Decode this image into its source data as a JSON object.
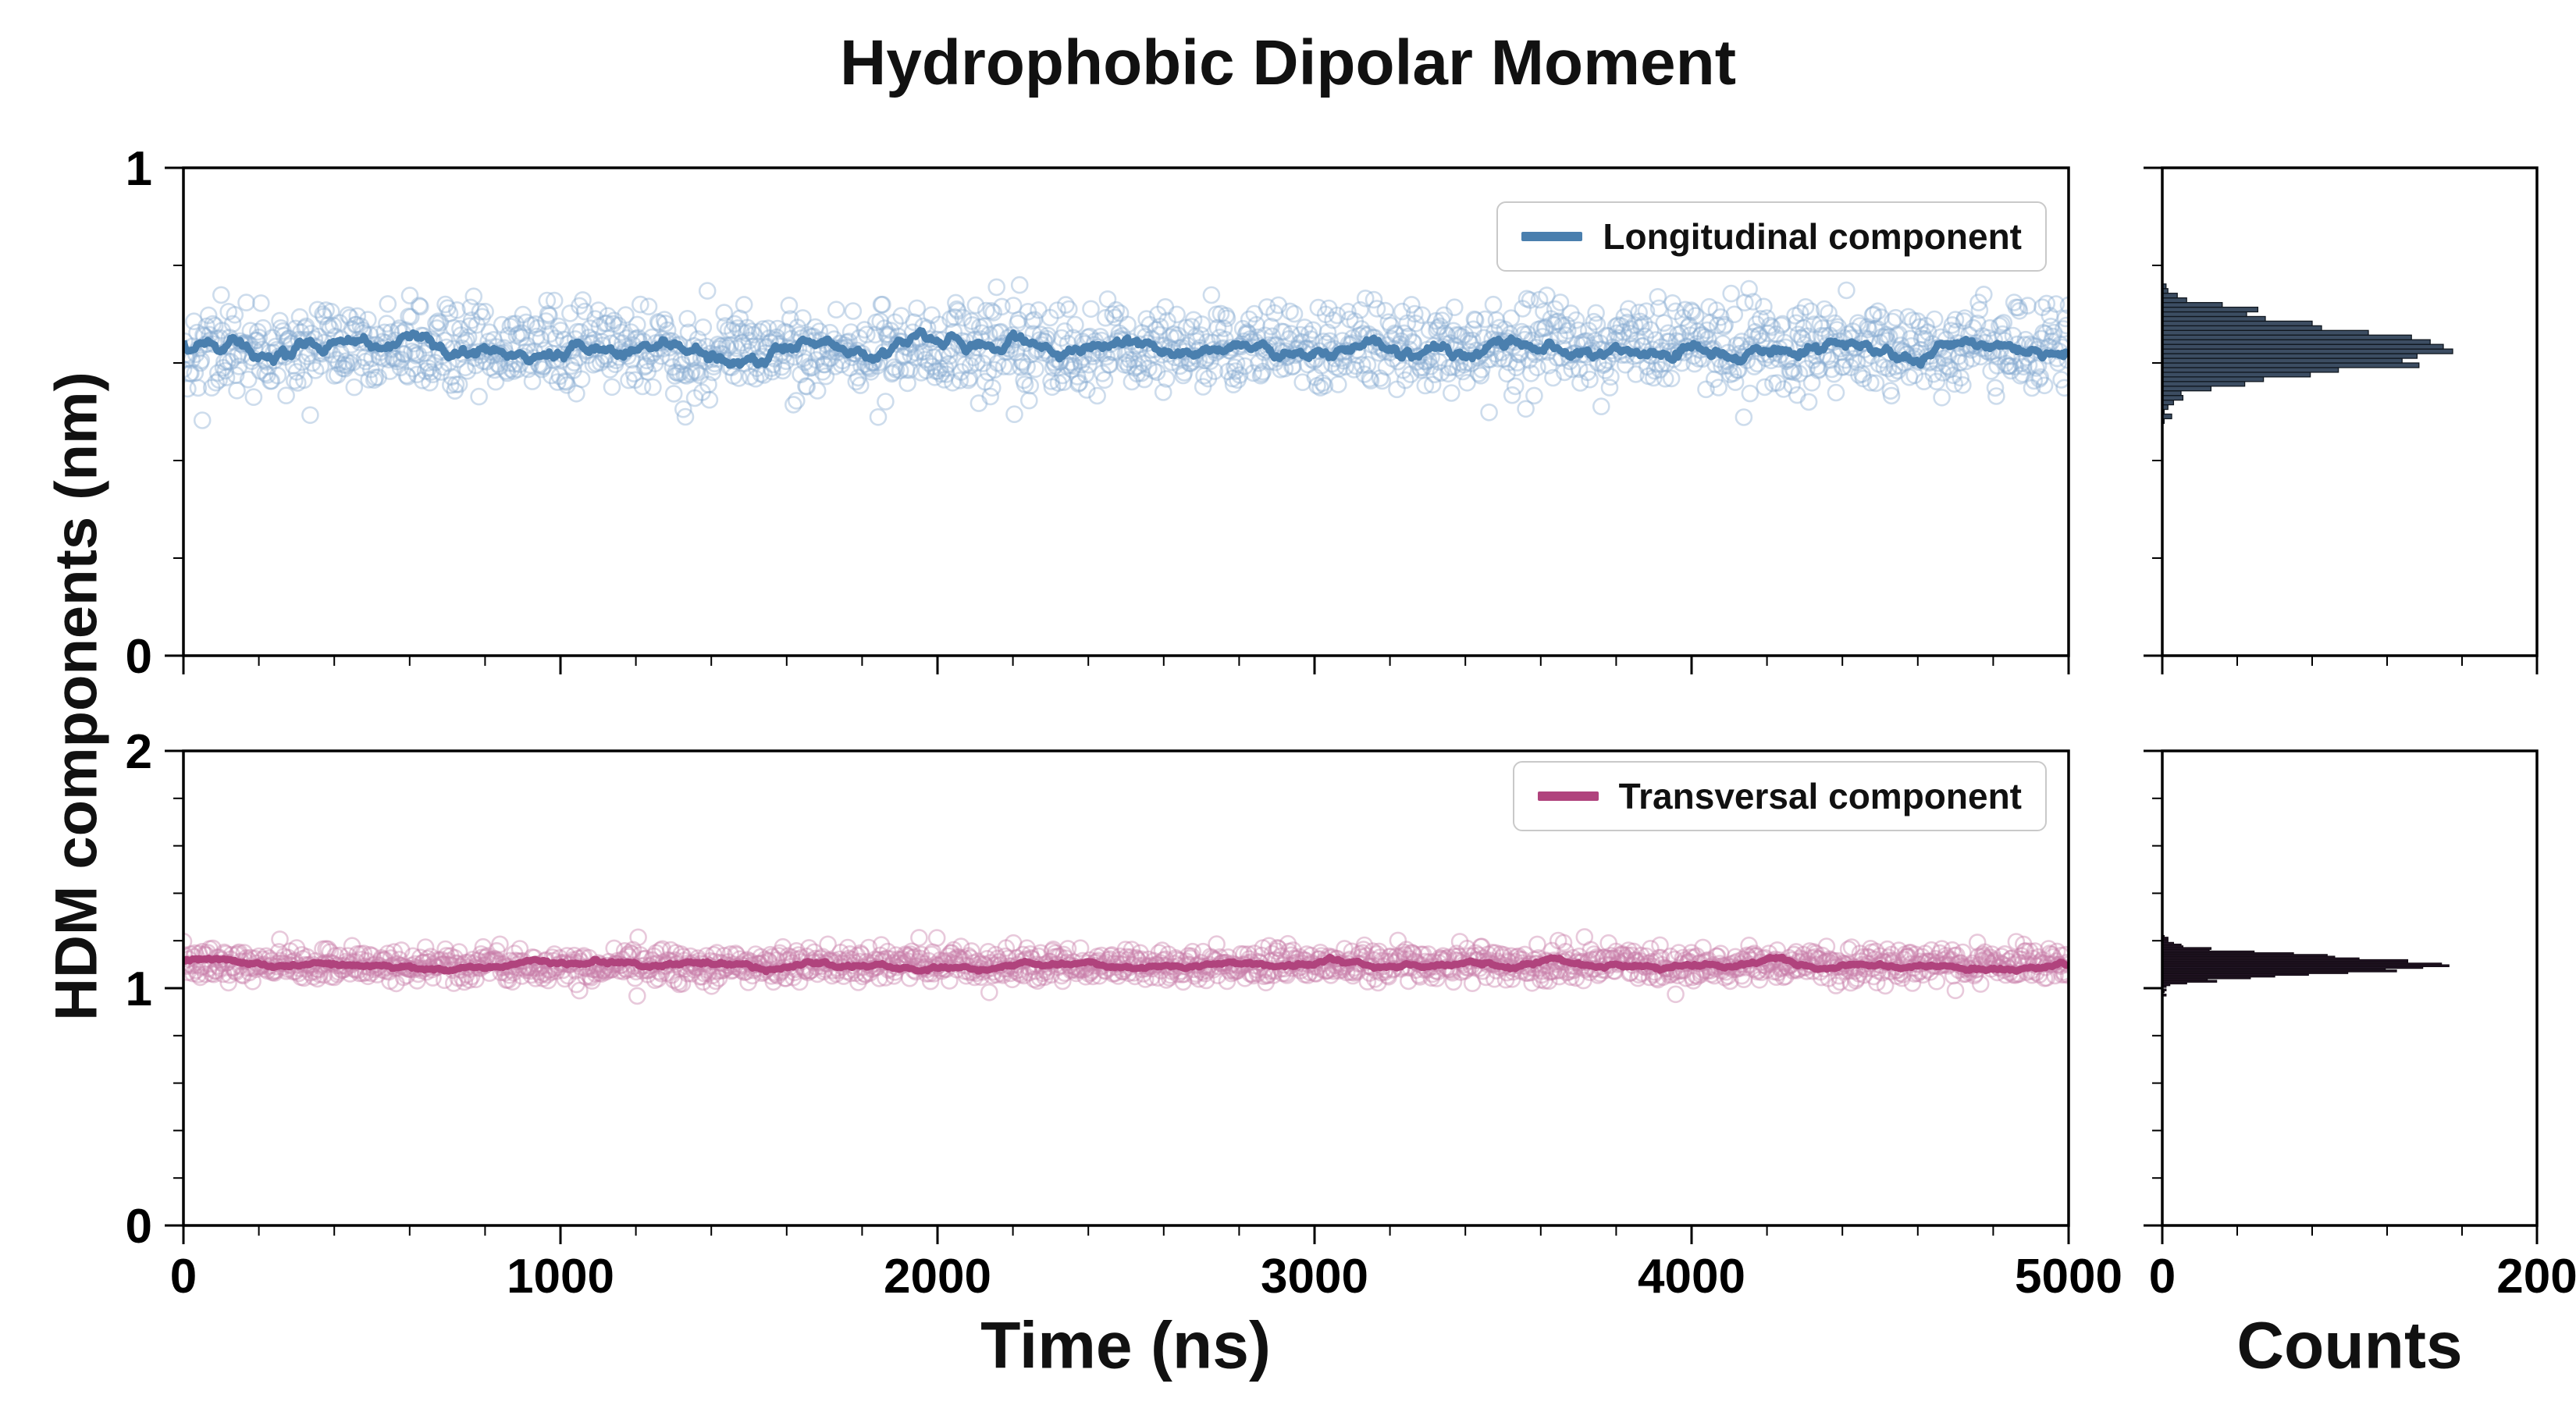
{
  "title": "Hydrophobic Dipolar Moment",
  "axes": {
    "ylabel": "HDM components (nm)",
    "xlabel": "Time (ns)",
    "hist_xlabel": "Counts"
  },
  "legends": {
    "longitudinal": "Longitudinal component",
    "transversal": "Transversal component"
  },
  "chart_data": [
    {
      "id": "longitudinal",
      "type": "scatter",
      "panel": "top",
      "legend": "Longitudinal component",
      "marker": "open-circle",
      "x_range": [
        0,
        5000
      ],
      "x_ticks": [
        0,
        1000,
        2000,
        3000,
        4000,
        5000
      ],
      "x_minor_step": 200,
      "y_range": [
        0,
        1
      ],
      "y_ticks": [
        0,
        1
      ],
      "y_minor_step": 0.2,
      "n_points": 1800,
      "mean": 0.63,
      "std": 0.045,
      "line_window": 21,
      "seed": 42,
      "line_color": "#4a7fae",
      "scatter_color": "#88abd1"
    },
    {
      "id": "transversal",
      "type": "scatter",
      "panel": "bottom",
      "legend": "Transversal component",
      "marker": "open-circle",
      "x_range": [
        0,
        5000
      ],
      "x_ticks": [
        0,
        1000,
        2000,
        3000,
        4000,
        5000
      ],
      "x_minor_step": 200,
      "y_range": [
        0,
        2
      ],
      "y_ticks": [
        0,
        1,
        2
      ],
      "y_minor_step": 0.2,
      "n_points": 1800,
      "mean": 1.1,
      "std": 0.035,
      "line_window": 21,
      "seed": 7,
      "line_color": "#b0437d",
      "scatter_color": "#c87fa9"
    },
    {
      "id": "longitudinal-hist",
      "type": "histogram",
      "panel": "top-hist",
      "source": "longitudinal",
      "orientation": "horizontal",
      "x_range": [
        0,
        200
      ],
      "x_ticks": [
        0,
        200
      ],
      "x_minor_step": 40,
      "y_range": [
        0,
        1
      ],
      "y_ticks": [
        0,
        1
      ],
      "y_minor_step": 0.2,
      "n_bins": 105,
      "approx_peak_count": 165,
      "fill_color": "#3c4d62",
      "edge_color": "#10171f"
    },
    {
      "id": "transversal-hist",
      "type": "histogram",
      "panel": "bottom-hist",
      "source": "transversal",
      "orientation": "horizontal",
      "x_range": [
        0,
        200
      ],
      "x_ticks": [
        0,
        200
      ],
      "x_minor_step": 40,
      "y_range": [
        0,
        2
      ],
      "y_ticks": [
        0,
        1,
        2
      ],
      "y_minor_step": 0.2,
      "n_bins": 275,
      "approx_peak_count": 150,
      "fill_color": "#2a1b2c",
      "edge_color": "#120a13"
    }
  ]
}
